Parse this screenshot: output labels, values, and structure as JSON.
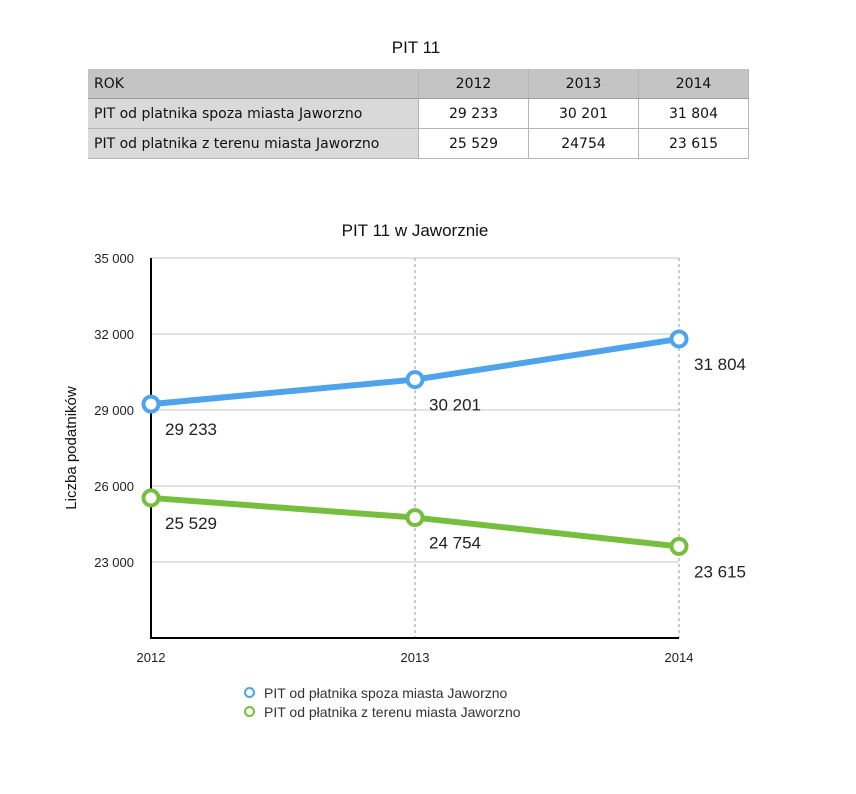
{
  "table": {
    "title": "PIT 11",
    "header": [
      "ROK",
      "2012",
      "2013",
      "2014"
    ],
    "rows": [
      {
        "label": "PIT od platnika spoza miasta Jaworzno",
        "values": [
          "29 233",
          "30 201",
          "31 804"
        ]
      },
      {
        "label": "PIT od platnika z terenu miasta Jaworzno",
        "values": [
          "25 529",
          "24754",
          "23 615"
        ]
      }
    ]
  },
  "chart_data": {
    "type": "line",
    "title": "PIT 11 w Jaworznie",
    "xlabel": "",
    "ylabel": "Liczba podatników",
    "categories": [
      "2012",
      "2013",
      "2014"
    ],
    "ylim": [
      20000,
      35000
    ],
    "yticks": [
      23000,
      26000,
      29000,
      32000,
      35000
    ],
    "ytick_labels": [
      "23 000",
      "26 000",
      "29 000",
      "32 000",
      "35 000"
    ],
    "grid": true,
    "legend": "bottom",
    "series": [
      {
        "name": "PIT od płatnika spoza miasta Jaworzno",
        "values": [
          29233,
          30201,
          31804
        ],
        "labels": [
          "29 233",
          "30 201",
          "31 804"
        ],
        "color": "#4ea3ea"
      },
      {
        "name": "PIT od płatnika z terenu miasta Jaworzno",
        "values": [
          25529,
          24754,
          23615
        ],
        "labels": [
          "25 529",
          "24 754",
          "23 615"
        ],
        "color": "#76bf3e"
      }
    ]
  }
}
